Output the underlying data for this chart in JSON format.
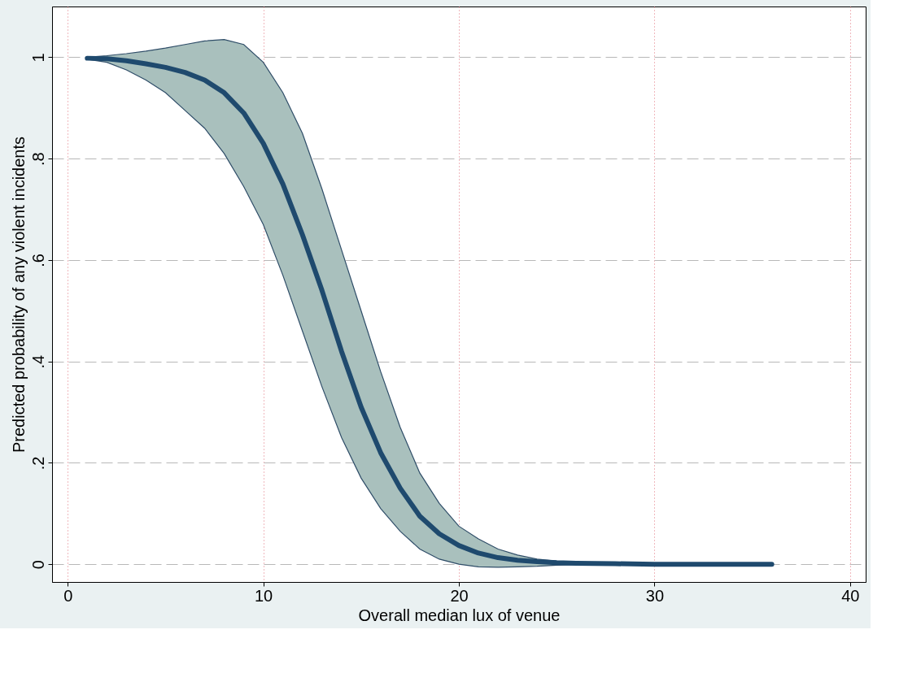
{
  "chart_data": {
    "type": "line",
    "xlabel": "Overall median lux of venue",
    "ylabel": "Predicted probability of any violent incidents",
    "x": [
      1,
      2,
      3,
      4,
      5,
      6,
      7,
      8,
      9,
      10,
      11,
      12,
      13,
      14,
      15,
      16,
      17,
      18,
      19,
      20,
      21,
      22,
      23,
      24,
      25,
      26,
      28,
      30,
      33,
      36
    ],
    "series": [
      {
        "color": "#1f4a6e",
        "values": [
          0.998,
          0.997,
          0.993,
          0.987,
          0.98,
          0.97,
          0.955,
          0.93,
          0.89,
          0.83,
          0.75,
          0.65,
          0.54,
          0.42,
          0.31,
          0.22,
          0.15,
          0.095,
          0.06,
          0.037,
          0.022,
          0.013,
          0.008,
          0.005,
          0.003,
          0.002,
          0.001,
          0,
          0,
          0
        ],
        "upper": [
          1.0,
          1.003,
          1.007,
          1.012,
          1.018,
          1.025,
          1.032,
          1.035,
          1.025,
          0.99,
          0.93,
          0.85,
          0.74,
          0.62,
          0.5,
          0.38,
          0.27,
          0.18,
          0.12,
          0.075,
          0.05,
          0.03,
          0.018,
          0.01,
          0.006,
          0.003,
          0.001,
          0,
          0,
          0
        ],
        "lower": [
          0.996,
          0.99,
          0.975,
          0.955,
          0.93,
          0.895,
          0.86,
          0.81,
          0.745,
          0.67,
          0.57,
          0.46,
          0.35,
          0.25,
          0.17,
          0.11,
          0.065,
          0.03,
          0.01,
          0.0,
          -0.005,
          -0.006,
          -0.005,
          -0.004,
          -0.002,
          -0.001,
          0,
          0,
          0,
          0
        ]
      }
    ],
    "xlim": [
      -0.8,
      40.8
    ],
    "ylim": [
      -0.035,
      1.1
    ],
    "xticks": [
      0,
      10,
      20,
      30,
      40
    ],
    "yticks": [
      0,
      {
        "value": 0.2,
        "label": ".2"
      },
      {
        "value": 0.4,
        "label": ".4"
      },
      {
        "value": 0.6,
        "label": ".6"
      },
      {
        "value": 0.8,
        "label": ".8"
      },
      1
    ],
    "grid": true,
    "marker": "none",
    "line_style": "solid"
  }
}
